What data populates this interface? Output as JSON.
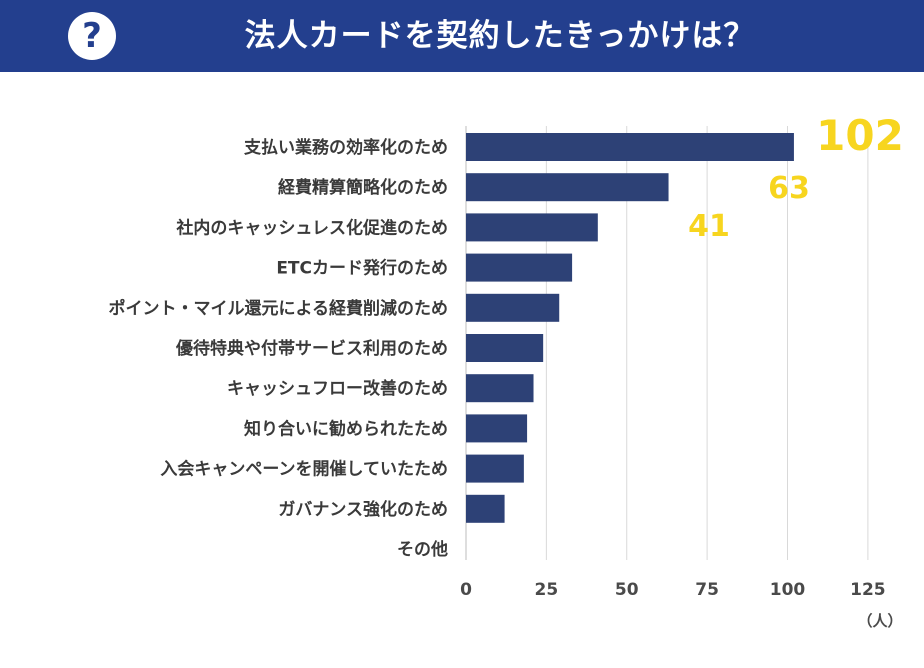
{
  "header": {
    "title": "法人カードを契約したきっかけは？",
    "icon": "question-icon",
    "icon_glyph": "?",
    "background_color": "#233f8e"
  },
  "chart_data": {
    "type": "bar",
    "orientation": "horizontal",
    "categories": [
      "支払い業務の効率化のため",
      "経費精算簡略化のため",
      "社内のキャッシュレス化促進のため",
      "ETCカード発行のため",
      "ポイント・マイル還元による経費削減のため",
      "優待特典や付帯サービス利用のため",
      "キャッシュフロー改善のため",
      "知り合いに勧められたため",
      "入会キャンペーンを開催していたため",
      "ガバナンス強化のため",
      "その他"
    ],
    "values": [
      102,
      63,
      41,
      33,
      29,
      24,
      21,
      19,
      18,
      12,
      0
    ],
    "data_labels": [
      {
        "category": "支払い業務の効率化のため",
        "text": "102"
      },
      {
        "category": "経費精算簡略化のため",
        "text": "63"
      },
      {
        "category": "社内のキャッシュレス化促進のため",
        "text": "41"
      }
    ],
    "xlim": [
      0,
      125
    ],
    "x_ticks": [
      0,
      25,
      50,
      75,
      100,
      125
    ],
    "x_unit": "（人）",
    "grid": "vertical",
    "bar_color": "#2d4176",
    "label_color": "#f7d51f"
  }
}
